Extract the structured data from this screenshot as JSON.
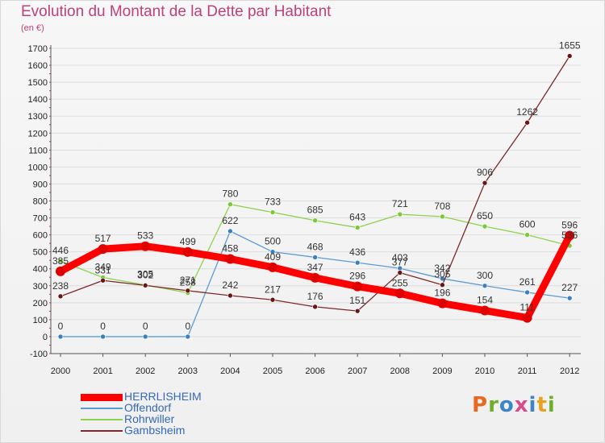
{
  "title": "Evolution du Montant de la Dette par Habitant",
  "unit_label": "(en €)",
  "logo": "Proxiti",
  "colors": {
    "title": "#c0407a",
    "axis_text": "#222222",
    "grid": "#dddddd",
    "legend_text": "#3568b8"
  },
  "chart_data": {
    "type": "line",
    "title": "Evolution du Montant de la Dette par Habitant",
    "ylabel": "(en €)",
    "xlabel": "",
    "x": [
      "2000",
      "2001",
      "2002",
      "2003",
      "2004",
      "2005",
      "2006",
      "2007",
      "2008",
      "2009",
      "2010",
      "2011",
      "2012"
    ],
    "ylim": [
      -100,
      1700
    ],
    "yticks": [
      -100,
      0,
      100,
      200,
      300,
      400,
      500,
      600,
      700,
      800,
      900,
      1000,
      1100,
      1200,
      1300,
      1400,
      1500,
      1600,
      1700
    ],
    "grid": true,
    "legend_position": "bottom-left",
    "series": [
      {
        "name": "HERRLISHEIM",
        "color": "#ff0000",
        "marker_color": "#e00000",
        "width": 9,
        "marker_r": 6,
        "values": [
          385,
          517,
          533,
          499,
          458,
          409,
          347,
          296,
          255,
          196,
          154,
          111,
          596
        ]
      },
      {
        "name": "Offendorf",
        "color": "#5b9bd5",
        "marker_color": "#3a7fc0",
        "width": 1.3,
        "marker_r": 3,
        "values": [
          0,
          0,
          0,
          0,
          622,
          500,
          468,
          436,
          403,
          342,
          300,
          261,
          227
        ]
      },
      {
        "name": "Rohrwiller",
        "color": "#8fd14f",
        "marker_color": "#7cc83a",
        "width": 1.3,
        "marker_r": 3,
        "values": [
          446,
          349,
          305,
          258,
          780,
          733,
          685,
          643,
          721,
          708,
          650,
          600,
          536
        ]
      },
      {
        "name": "Gambsheim",
        "color": "#7a2a2a",
        "marker_color": "#6a1515",
        "width": 1.3,
        "marker_r": 3,
        "values": [
          238,
          331,
          302,
          271,
          242,
          217,
          176,
          151,
          377,
          305,
          906,
          1262,
          1655
        ]
      }
    ]
  }
}
